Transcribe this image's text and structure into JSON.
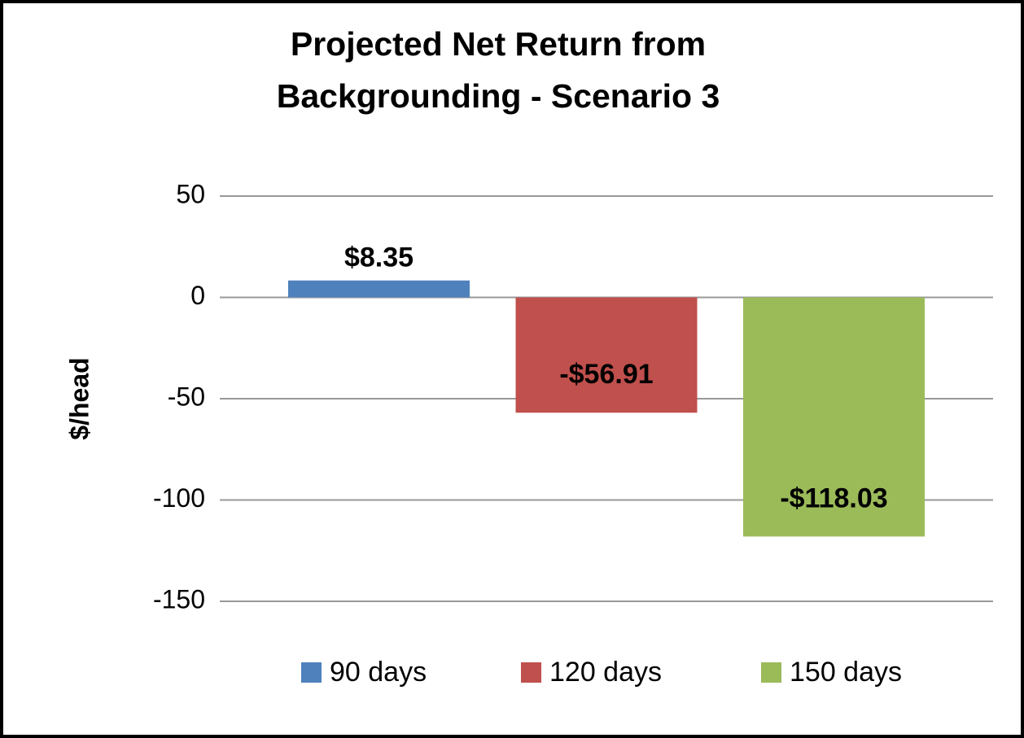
{
  "chart_data": {
    "type": "bar",
    "title": "Projected Net Return from Backgrounding - Scenario 3",
    "y_label": "$/head",
    "categories": [
      null
    ],
    "series": [
      {
        "name": "90 days",
        "color": "#4f81bd",
        "values": [
          8.35
        ],
        "value_labels": [
          "$8.35"
        ]
      },
      {
        "name": "120 days",
        "color": "#c0504d",
        "values": [
          -56.91
        ],
        "value_labels": [
          "-$56.91"
        ]
      },
      {
        "name": "150 days",
        "color": "#9bbb59",
        "values": [
          -118.03
        ],
        "value_labels": [
          "-$118.03"
        ]
      }
    ],
    "ylim": [
      -150,
      50
    ],
    "yticks": [
      -150,
      -100,
      -50,
      0,
      50
    ],
    "grid": true,
    "legend": "bottom"
  }
}
